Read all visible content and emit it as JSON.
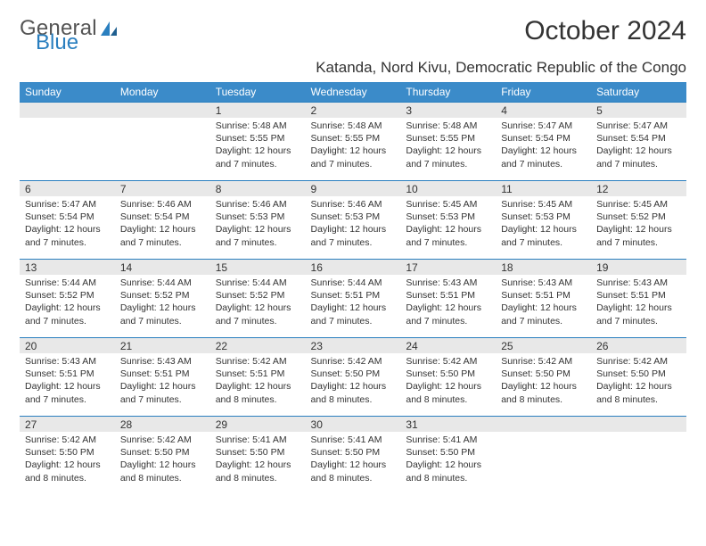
{
  "logo": {
    "word1": "General",
    "word2": "Blue"
  },
  "title": "October 2024",
  "location": "Katanda, Nord Kivu, Democratic Republic of the Congo",
  "colors": {
    "header_bg": "#3b8bc9",
    "header_text": "#ffffff",
    "daynum_bg": "#e8e8e8",
    "row_border": "#2a7fbf",
    "page_bg": "#ffffff",
    "text": "#333333",
    "logo_accent": "#2a7fbf"
  },
  "weekdays": [
    "Sunday",
    "Monday",
    "Tuesday",
    "Wednesday",
    "Thursday",
    "Friday",
    "Saturday"
  ],
  "weeks": [
    [
      {
        "n": "",
        "sunrise": "",
        "sunset": "",
        "daylight": ""
      },
      {
        "n": "",
        "sunrise": "",
        "sunset": "",
        "daylight": ""
      },
      {
        "n": "1",
        "sunrise": "Sunrise: 5:48 AM",
        "sunset": "Sunset: 5:55 PM",
        "daylight": "Daylight: 12 hours and 7 minutes."
      },
      {
        "n": "2",
        "sunrise": "Sunrise: 5:48 AM",
        "sunset": "Sunset: 5:55 PM",
        "daylight": "Daylight: 12 hours and 7 minutes."
      },
      {
        "n": "3",
        "sunrise": "Sunrise: 5:48 AM",
        "sunset": "Sunset: 5:55 PM",
        "daylight": "Daylight: 12 hours and 7 minutes."
      },
      {
        "n": "4",
        "sunrise": "Sunrise: 5:47 AM",
        "sunset": "Sunset: 5:54 PM",
        "daylight": "Daylight: 12 hours and 7 minutes."
      },
      {
        "n": "5",
        "sunrise": "Sunrise: 5:47 AM",
        "sunset": "Sunset: 5:54 PM",
        "daylight": "Daylight: 12 hours and 7 minutes."
      }
    ],
    [
      {
        "n": "6",
        "sunrise": "Sunrise: 5:47 AM",
        "sunset": "Sunset: 5:54 PM",
        "daylight": "Daylight: 12 hours and 7 minutes."
      },
      {
        "n": "7",
        "sunrise": "Sunrise: 5:46 AM",
        "sunset": "Sunset: 5:54 PM",
        "daylight": "Daylight: 12 hours and 7 minutes."
      },
      {
        "n": "8",
        "sunrise": "Sunrise: 5:46 AM",
        "sunset": "Sunset: 5:53 PM",
        "daylight": "Daylight: 12 hours and 7 minutes."
      },
      {
        "n": "9",
        "sunrise": "Sunrise: 5:46 AM",
        "sunset": "Sunset: 5:53 PM",
        "daylight": "Daylight: 12 hours and 7 minutes."
      },
      {
        "n": "10",
        "sunrise": "Sunrise: 5:45 AM",
        "sunset": "Sunset: 5:53 PM",
        "daylight": "Daylight: 12 hours and 7 minutes."
      },
      {
        "n": "11",
        "sunrise": "Sunrise: 5:45 AM",
        "sunset": "Sunset: 5:53 PM",
        "daylight": "Daylight: 12 hours and 7 minutes."
      },
      {
        "n": "12",
        "sunrise": "Sunrise: 5:45 AM",
        "sunset": "Sunset: 5:52 PM",
        "daylight": "Daylight: 12 hours and 7 minutes."
      }
    ],
    [
      {
        "n": "13",
        "sunrise": "Sunrise: 5:44 AM",
        "sunset": "Sunset: 5:52 PM",
        "daylight": "Daylight: 12 hours and 7 minutes."
      },
      {
        "n": "14",
        "sunrise": "Sunrise: 5:44 AM",
        "sunset": "Sunset: 5:52 PM",
        "daylight": "Daylight: 12 hours and 7 minutes."
      },
      {
        "n": "15",
        "sunrise": "Sunrise: 5:44 AM",
        "sunset": "Sunset: 5:52 PM",
        "daylight": "Daylight: 12 hours and 7 minutes."
      },
      {
        "n": "16",
        "sunrise": "Sunrise: 5:44 AM",
        "sunset": "Sunset: 5:51 PM",
        "daylight": "Daylight: 12 hours and 7 minutes."
      },
      {
        "n": "17",
        "sunrise": "Sunrise: 5:43 AM",
        "sunset": "Sunset: 5:51 PM",
        "daylight": "Daylight: 12 hours and 7 minutes."
      },
      {
        "n": "18",
        "sunrise": "Sunrise: 5:43 AM",
        "sunset": "Sunset: 5:51 PM",
        "daylight": "Daylight: 12 hours and 7 minutes."
      },
      {
        "n": "19",
        "sunrise": "Sunrise: 5:43 AM",
        "sunset": "Sunset: 5:51 PM",
        "daylight": "Daylight: 12 hours and 7 minutes."
      }
    ],
    [
      {
        "n": "20",
        "sunrise": "Sunrise: 5:43 AM",
        "sunset": "Sunset: 5:51 PM",
        "daylight": "Daylight: 12 hours and 7 minutes."
      },
      {
        "n": "21",
        "sunrise": "Sunrise: 5:43 AM",
        "sunset": "Sunset: 5:51 PM",
        "daylight": "Daylight: 12 hours and 7 minutes."
      },
      {
        "n": "22",
        "sunrise": "Sunrise: 5:42 AM",
        "sunset": "Sunset: 5:51 PM",
        "daylight": "Daylight: 12 hours and 8 minutes."
      },
      {
        "n": "23",
        "sunrise": "Sunrise: 5:42 AM",
        "sunset": "Sunset: 5:50 PM",
        "daylight": "Daylight: 12 hours and 8 minutes."
      },
      {
        "n": "24",
        "sunrise": "Sunrise: 5:42 AM",
        "sunset": "Sunset: 5:50 PM",
        "daylight": "Daylight: 12 hours and 8 minutes."
      },
      {
        "n": "25",
        "sunrise": "Sunrise: 5:42 AM",
        "sunset": "Sunset: 5:50 PM",
        "daylight": "Daylight: 12 hours and 8 minutes."
      },
      {
        "n": "26",
        "sunrise": "Sunrise: 5:42 AM",
        "sunset": "Sunset: 5:50 PM",
        "daylight": "Daylight: 12 hours and 8 minutes."
      }
    ],
    [
      {
        "n": "27",
        "sunrise": "Sunrise: 5:42 AM",
        "sunset": "Sunset: 5:50 PM",
        "daylight": "Daylight: 12 hours and 8 minutes."
      },
      {
        "n": "28",
        "sunrise": "Sunrise: 5:42 AM",
        "sunset": "Sunset: 5:50 PM",
        "daylight": "Daylight: 12 hours and 8 minutes."
      },
      {
        "n": "29",
        "sunrise": "Sunrise: 5:41 AM",
        "sunset": "Sunset: 5:50 PM",
        "daylight": "Daylight: 12 hours and 8 minutes."
      },
      {
        "n": "30",
        "sunrise": "Sunrise: 5:41 AM",
        "sunset": "Sunset: 5:50 PM",
        "daylight": "Daylight: 12 hours and 8 minutes."
      },
      {
        "n": "31",
        "sunrise": "Sunrise: 5:41 AM",
        "sunset": "Sunset: 5:50 PM",
        "daylight": "Daylight: 12 hours and 8 minutes."
      },
      {
        "n": "",
        "sunrise": "",
        "sunset": "",
        "daylight": ""
      },
      {
        "n": "",
        "sunrise": "",
        "sunset": "",
        "daylight": ""
      }
    ]
  ]
}
